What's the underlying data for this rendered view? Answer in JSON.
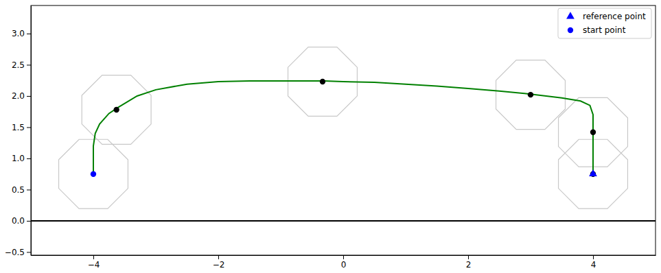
{
  "chart_data": {
    "type": "line",
    "xlim": [
      -5,
      5
    ],
    "ylim": [
      -0.55,
      3.45
    ],
    "xticks": [
      {
        "value": -4,
        "label": "−4"
      },
      {
        "value": -2,
        "label": "−2"
      },
      0,
      2,
      4
    ],
    "yticks": [
      {
        "value": -0.5,
        "label": "−0.5"
      },
      {
        "value": 0,
        "label": "0.0"
      },
      0.5,
      {
        "value": 1,
        "label": "1.0"
      },
      1.5,
      {
        "value": 2,
        "label": "2.0"
      },
      2.5,
      {
        "value": 3,
        "label": "3.0"
      }
    ],
    "grid": false,
    "legend": "upper right",
    "ground": 0,
    "series": [
      {
        "type": "line",
        "color": "#008000",
        "x": [
          -4,
          -4,
          -3.97,
          -3.9,
          -3.75,
          -3.6,
          -3.3,
          -3,
          -2.5,
          -2,
          -1.5,
          -1,
          -0.3,
          0,
          0.5,
          1,
          1.5,
          2,
          2.5,
          3,
          3.5,
          3.8,
          3.95,
          4,
          4,
          4
        ],
        "values": [
          0.75,
          1.2,
          1.4,
          1.55,
          1.72,
          1.82,
          2.0,
          2.1,
          2.19,
          2.23,
          2.24,
          2.24,
          2.24,
          2.23,
          2.22,
          2.19,
          2.16,
          2.12,
          2.08,
          2.03,
          1.97,
          1.92,
          1.85,
          1.7,
          1.42,
          0.75
        ]
      },
      {
        "type": "scatter",
        "color": "#000000",
        "marker": "circle",
        "x": [
          -3.63,
          -0.33,
          3.0,
          4.0,
          4.0
        ],
        "values": [
          1.78,
          2.23,
          2.02,
          1.42,
          0.75
        ]
      },
      {
        "name": "reference point",
        "type": "scatter",
        "color": "#0000ff",
        "marker": "triangle",
        "x": [
          4
        ],
        "values": [
          0.75
        ]
      },
      {
        "name": "start point",
        "type": "scatter",
        "color": "#0000ff",
        "marker": "circle",
        "x": [
          -4
        ],
        "values": [
          0.75
        ]
      }
    ]
  }
}
